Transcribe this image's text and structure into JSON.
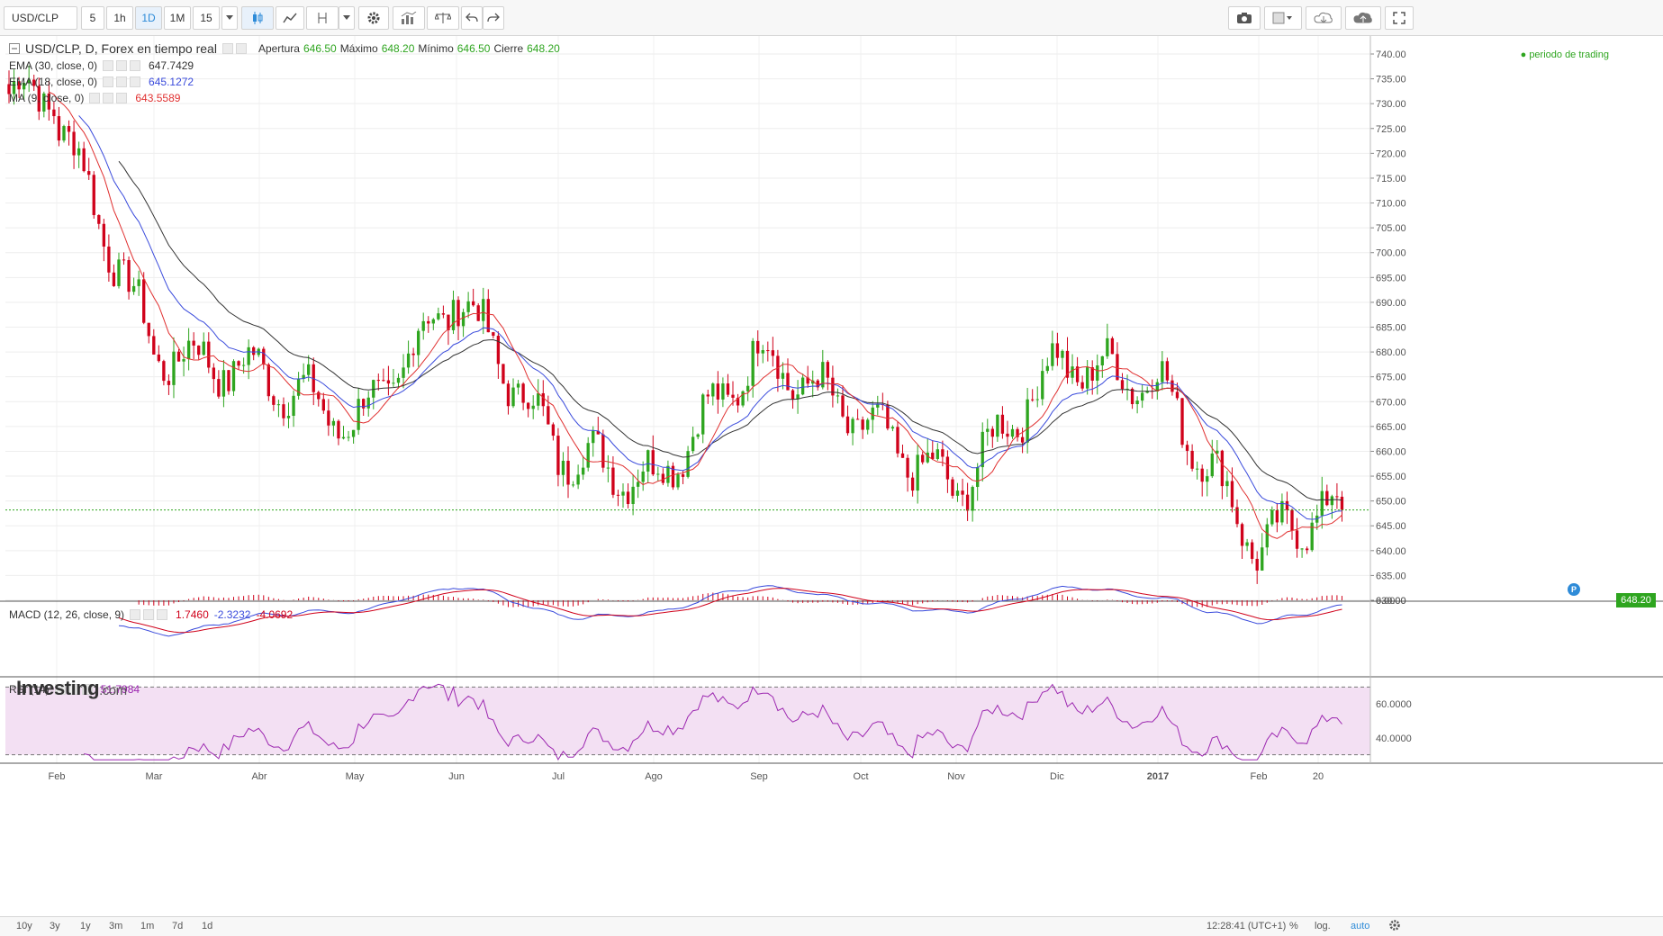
{
  "toolbar": {
    "symbol": "USD/CLP",
    "intervals": [
      "5",
      "1h",
      "1D",
      "1M",
      "15"
    ],
    "active_interval": "1D"
  },
  "legend": {
    "title": "USD/CLP, D, Forex en tiempo real",
    "apertura_label": "Apertura",
    "apertura": "646.50",
    "maximo_label": "Máximo",
    "maximo": "648.20",
    "minimo_label": "Mínimo",
    "minimo": "646.50",
    "cierre_label": "Cierre",
    "cierre": "648.20",
    "ema30_label": "EMA (30, close, 0)",
    "ema30_value": "647.7429",
    "ema18_label": "EMA (18, close, 0)",
    "ema18_value": "645.1272",
    "ma9_label": "MA (9, close, 0)",
    "ma9_value": "643.5589",
    "trading_period": "periodo de trading"
  },
  "macd_legend": {
    "label": "MACD (12, 26, close, 9)",
    "v1": "1.7460",
    "v2": "-2.3232",
    "v3": "-4.0692"
  },
  "rsi_legend": {
    "label": "RSI (14)",
    "value": "51.7984"
  },
  "logo": {
    "brand": "Investing",
    "suffix": ".com"
  },
  "price_flag": "648.20",
  "p_badge": "P",
  "price_axis": {
    "min": 630,
    "max": 740,
    "ticks": [
      "740.00",
      "735.00",
      "730.00",
      "725.00",
      "720.00",
      "715.00",
      "710.00",
      "705.00",
      "700.00",
      "695.00",
      "690.00",
      "685.00",
      "680.00",
      "675.00",
      "670.00",
      "665.00",
      "660.00",
      "655.00",
      "650.00",
      "645.00",
      "640.00",
      "635.00",
      "630.00"
    ]
  },
  "macd_axis": {
    "ticks": [
      "0.0000"
    ]
  },
  "rsi_axis": {
    "ticks": [
      "60.0000",
      "40.0000"
    ],
    "min": 25,
    "max": 75,
    "upper": 70,
    "lower": 30
  },
  "time_axis": {
    "labels": [
      "Feb",
      "Mar",
      "Abr",
      "May",
      "Jun",
      "Jul",
      "Ago",
      "Sep",
      "Oct",
      "Nov",
      "Dic",
      "2017",
      "Feb",
      "20"
    ]
  },
  "bottom_bar": {
    "ranges": [
      "10y",
      "3y",
      "1y",
      "3m",
      "1m",
      "7d",
      "1d"
    ],
    "clock": "12:28:41 (UTC+1)",
    "percent": "%",
    "log": "log.",
    "auto": "auto"
  },
  "colors": {
    "up": "#2ea51f",
    "down": "#d0021b",
    "ema30": "#333333",
    "ema18": "#3a4bdc",
    "ma9": "#e03030",
    "rsi": "#9c27b0",
    "rsi_band": "#f3e0f3"
  },
  "chart_data": {
    "type": "candlestick",
    "series_anchors": [
      {
        "month": "Feb",
        "close": 728
      },
      {
        "month": "Mar",
        "close": 680
      },
      {
        "month": "Abr",
        "close": 676
      },
      {
        "month": "May",
        "close": 665
      },
      {
        "month": "Jun",
        "close": 692
      },
      {
        "month": "Jul",
        "close": 660
      },
      {
        "month": "Ago",
        "close": 654
      },
      {
        "month": "Sep",
        "close": 680
      },
      {
        "month": "Oct",
        "close": 666
      },
      {
        "month": "Nov",
        "close": 652
      },
      {
        "month": "Dic",
        "close": 678
      },
      {
        "month": "2017",
        "close": 674
      },
      {
        "month": "Feb",
        "close": 640
      },
      {
        "month": "20",
        "close": 648.2
      }
    ]
  }
}
